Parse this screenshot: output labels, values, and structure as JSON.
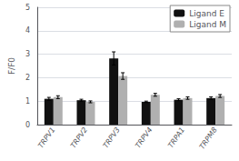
{
  "chart_data": {
    "type": "bar",
    "categories": [
      "TRPV1",
      "TRPV2",
      "TRPV3",
      "TRPV4",
      "TRPA1",
      "TRPM8"
    ],
    "series": [
      {
        "name": "Ligand E",
        "color": "#111111",
        "values": [
          1.1,
          1.04,
          2.82,
          0.97,
          1.06,
          1.13
        ],
        "errors": [
          0.06,
          0.04,
          0.28,
          0.03,
          0.04,
          0.05
        ]
      },
      {
        "name": "Ligand M",
        "color": "#b0b0b0",
        "values": [
          1.17,
          0.97,
          2.07,
          1.27,
          1.13,
          1.22
        ],
        "errors": [
          0.06,
          0.04,
          0.14,
          0.06,
          0.05,
          0.06
        ]
      }
    ],
    "ylabel": "F/F0",
    "ylim": [
      0,
      5
    ],
    "yticks": [
      0,
      1,
      2,
      3,
      4,
      5
    ],
    "legend": "upper right"
  }
}
